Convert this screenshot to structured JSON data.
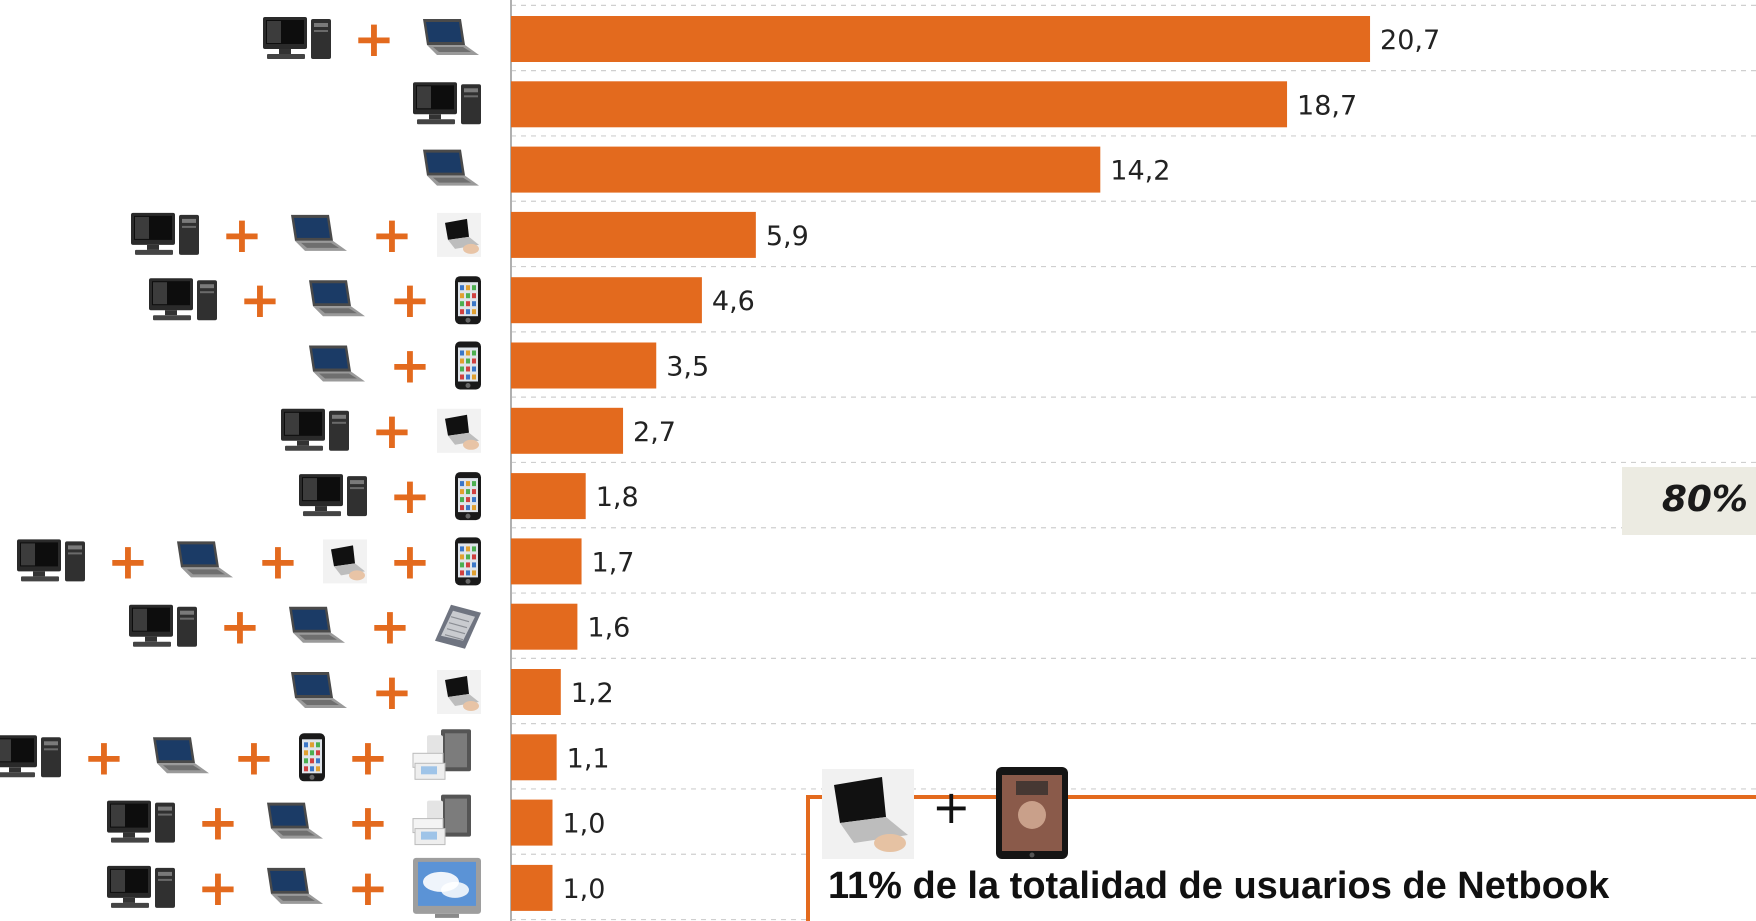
{
  "chart_data": {
    "type": "bar",
    "orientation": "horizontal",
    "title": "",
    "xlabel": "",
    "ylabel": "",
    "xlim": [
      0,
      30
    ],
    "grid": "dashed-horizontal",
    "bar_color": "#e36a1e",
    "categories": [
      [
        "desktop-icon",
        "laptop-icon"
      ],
      [
        "desktop-icon"
      ],
      [
        "laptop-icon"
      ],
      [
        "desktop-icon",
        "laptop-icon",
        "netbook-icon"
      ],
      [
        "desktop-icon",
        "laptop-icon",
        "smartphone-icon"
      ],
      [
        "laptop-icon",
        "smartphone-icon"
      ],
      [
        "desktop-icon",
        "netbook-icon"
      ],
      [
        "desktop-icon",
        "smartphone-icon"
      ],
      [
        "desktop-icon",
        "laptop-icon",
        "netbook-icon",
        "smartphone-icon"
      ],
      [
        "desktop-icon",
        "laptop-icon",
        "ereader-icon"
      ],
      [
        "laptop-icon",
        "netbook-icon"
      ],
      [
        "desktop-icon",
        "laptop-icon",
        "smartphone-icon",
        "game-console-icon"
      ],
      [
        "desktop-icon",
        "laptop-icon",
        "game-console-icon"
      ],
      [
        "desktop-icon",
        "laptop-icon",
        "tv-icon"
      ]
    ],
    "values": [
      20.7,
      18.7,
      14.2,
      5.9,
      4.6,
      3.5,
      2.7,
      1.8,
      1.7,
      1.6,
      1.2,
      1.1,
      1.0,
      1.0
    ],
    "value_labels": [
      "20,7",
      "18,7",
      "14,2",
      "5,9",
      "4,6",
      "3,5",
      "2,7",
      "1,8",
      "1,7",
      "1,6",
      "1,2",
      "1,1",
      "1,0",
      "1,0"
    ]
  },
  "plus_sign": "+",
  "badge": {
    "text": "80%"
  },
  "note": {
    "icons": [
      "netbook-icon",
      "tablet-icon"
    ],
    "text": "11% de la totalidad de usuarios de Netbook"
  }
}
